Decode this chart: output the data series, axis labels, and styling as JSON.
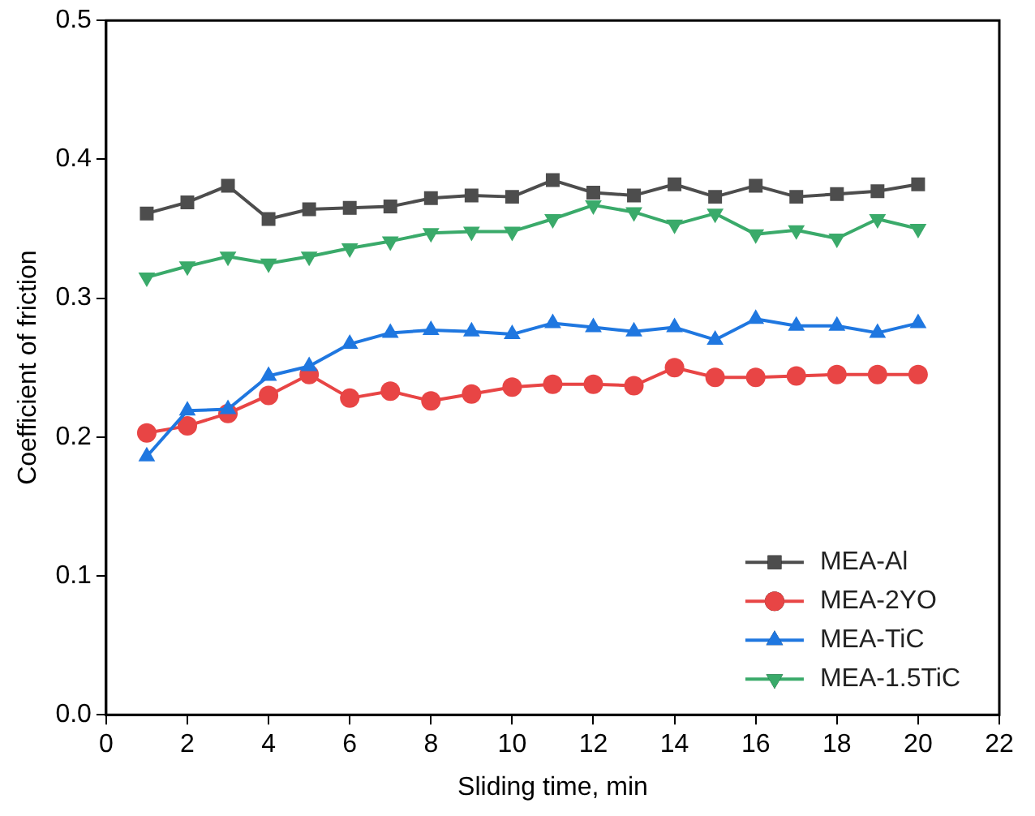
{
  "chart_data": {
    "type": "line",
    "xlabel": "Sliding time, min",
    "ylabel": "Coefficient of friction",
    "x": [
      1,
      2,
      3,
      4,
      5,
      6,
      7,
      8,
      9,
      10,
      11,
      12,
      13,
      14,
      15,
      16,
      17,
      18,
      19,
      20
    ],
    "xlim": [
      0,
      22
    ],
    "xticks": [
      0,
      2,
      4,
      6,
      8,
      10,
      12,
      14,
      16,
      18,
      20,
      22
    ],
    "ylim": [
      0,
      0.5
    ],
    "yticks": [
      {
        "value": 0,
        "label": "0.0"
      },
      0.1,
      0.2,
      0.3,
      0.4,
      0.5
    ],
    "grid": false,
    "legend": "bottom right",
    "line_style": "solid",
    "series": [
      {
        "name": "MEA-Al",
        "color": "#4d4d4d",
        "marker": "square",
        "values": [
          0.361,
          0.369,
          0.381,
          0.357,
          0.364,
          0.365,
          0.366,
          0.372,
          0.374,
          0.373,
          0.385,
          0.376,
          0.374,
          0.382,
          0.373,
          0.381,
          0.373,
          0.375,
          0.377,
          0.382
        ]
      },
      {
        "name": "MEA-2YO",
        "color": "#e84545",
        "marker": "circle",
        "values": [
          0.203,
          0.208,
          0.217,
          0.23,
          0.245,
          0.228,
          0.233,
          0.226,
          0.231,
          0.236,
          0.238,
          0.238,
          0.237,
          0.25,
          0.243,
          0.243,
          0.244,
          0.245,
          0.245,
          0.245
        ]
      },
      {
        "name": "MEA-TiC",
        "color": "#1f77e0",
        "marker": "triangle",
        "values": [
          0.186,
          0.219,
          0.22,
          0.244,
          0.251,
          0.267,
          0.275,
          0.277,
          0.276,
          0.274,
          0.282,
          0.279,
          0.276,
          0.279,
          0.27,
          0.285,
          0.28,
          0.28,
          0.275,
          0.282
        ]
      },
      {
        "name": "MEA-1.5TiC",
        "color": "#3aaa6a",
        "marker": "triangle-down",
        "values": [
          0.315,
          0.323,
          0.33,
          0.325,
          0.33,
          0.336,
          0.341,
          0.347,
          0.348,
          0.348,
          0.357,
          0.367,
          0.362,
          0.353,
          0.361,
          0.346,
          0.349,
          0.343,
          0.357,
          0.35
        ]
      }
    ]
  }
}
